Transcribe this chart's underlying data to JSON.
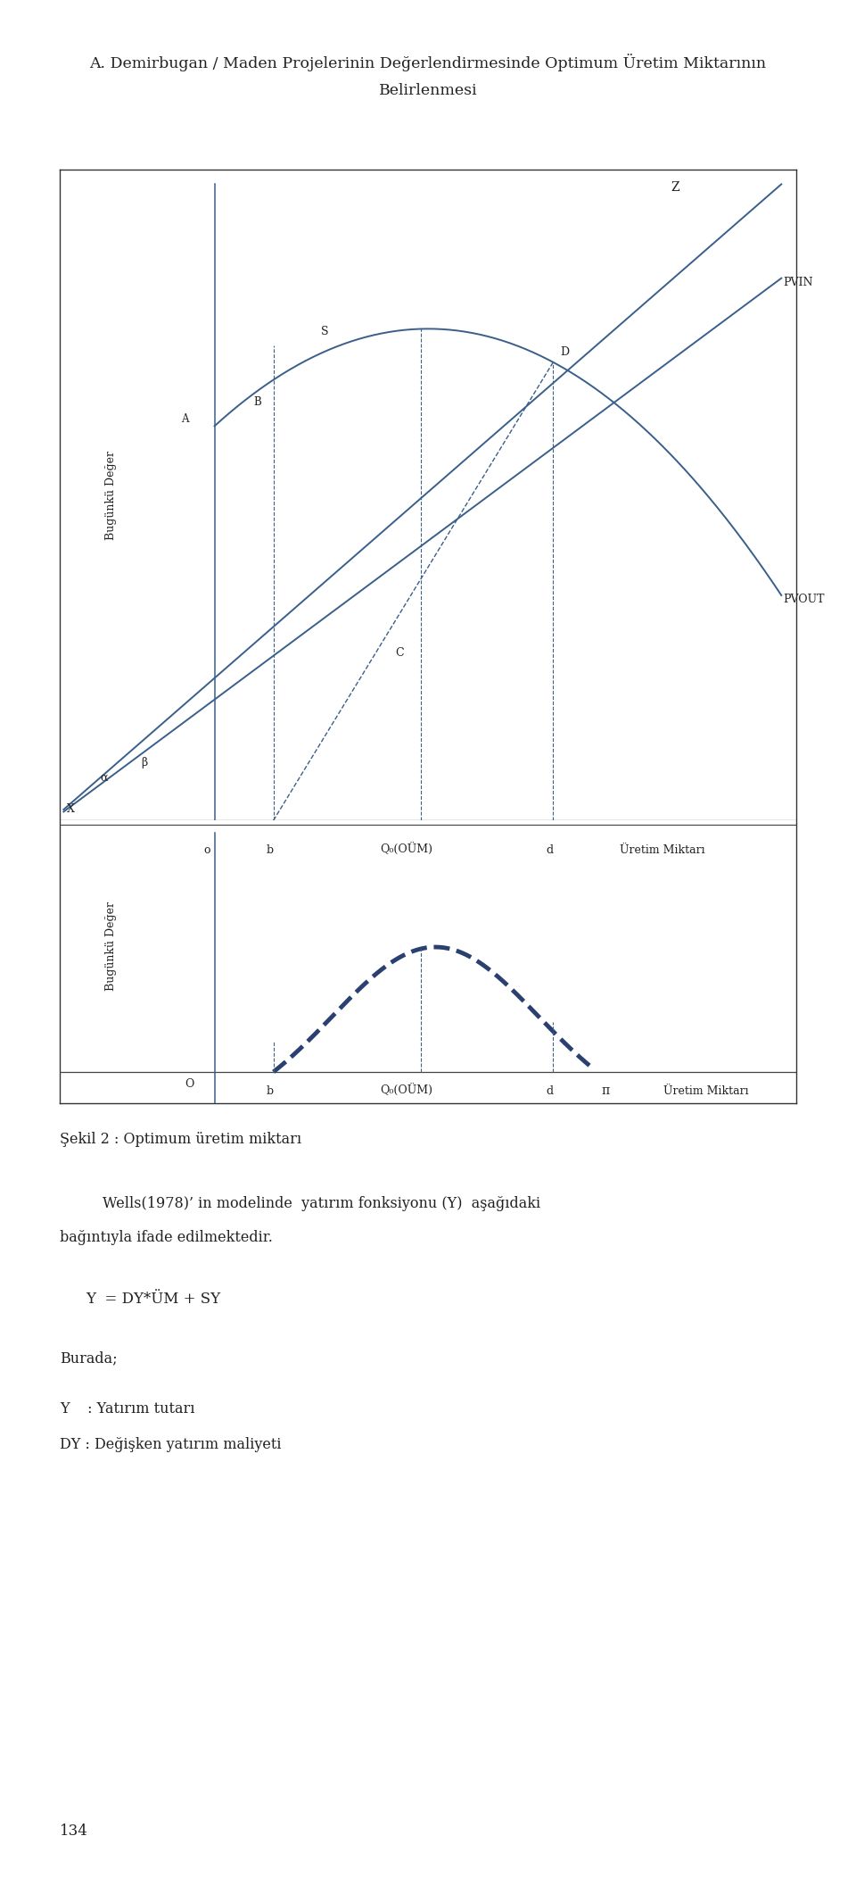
{
  "title_line1": "A. Demirbugan / Maden Projelerinin Değerlendirmesinde Optimum Üretim Miktarının",
  "title_line2": "Belirlenmesi",
  "fig_caption": "Şekil 2 : Optimum üretim miktarı",
  "body_line1": "Wells(1978)’ in modelinde  yatırım fonksiyonu (Y)  aşağıdaki",
  "body_line2": "bağıntıyla ifade edilmektedir.",
  "formula": "Y  = DY*ÜM + SY",
  "burada": "Burada;",
  "y_label": "Y    : Yatırım tutarı",
  "dy_label": "DY : Değişken yatırım maliyeti",
  "page_num": "134",
  "line_color": "#3a5f8a",
  "text_color": "#222222",
  "bg": "#ffffff"
}
